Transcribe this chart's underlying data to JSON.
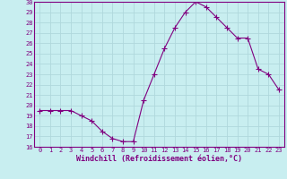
{
  "x": [
    0,
    1,
    2,
    3,
    4,
    5,
    6,
    7,
    8,
    9,
    10,
    11,
    12,
    13,
    14,
    15,
    16,
    17,
    18,
    19,
    20,
    21,
    22,
    23
  ],
  "y": [
    19.5,
    19.5,
    19.5,
    19.5,
    19.0,
    18.5,
    17.5,
    16.8,
    16.5,
    16.5,
    20.5,
    23.0,
    25.5,
    27.5,
    29.0,
    30.0,
    29.5,
    28.5,
    27.5,
    26.5,
    26.5,
    23.5,
    23.0,
    21.5
  ],
  "line_color": "#800080",
  "marker": "+",
  "marker_size": 4.0,
  "background_color": "#c8eef0",
  "grid_color": "#b0d8dc",
  "xlabel": "Windchill (Refroidissement éolien,°C)",
  "xlim": [
    -0.5,
    23.5
  ],
  "ylim": [
    16,
    30
  ],
  "yticks": [
    16,
    17,
    18,
    19,
    20,
    21,
    22,
    23,
    24,
    25,
    26,
    27,
    28,
    29,
    30
  ],
  "xticks": [
    0,
    1,
    2,
    3,
    4,
    5,
    6,
    7,
    8,
    9,
    10,
    11,
    12,
    13,
    14,
    15,
    16,
    17,
    18,
    19,
    20,
    21,
    22,
    23
  ],
  "tick_fontsize": 5.0,
  "xlabel_fontsize": 6.0,
  "tick_color": "#800080",
  "spine_color": "#800080"
}
